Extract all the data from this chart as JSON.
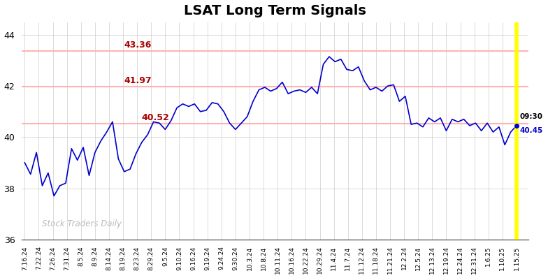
{
  "title": "LSAT Long Term Signals",
  "title_fontsize": 14,
  "line_color": "#0000cc",
  "background_color": "#ffffff",
  "grid_color": "#cccccc",
  "ylim": [
    36,
    44.5
  ],
  "yticks": [
    36,
    38,
    40,
    42,
    44
  ],
  "hlines": [
    {
      "y": 43.36,
      "color": "#ffb3b3",
      "lw": 1.5
    },
    {
      "y": 41.97,
      "color": "#ffb3b3",
      "lw": 1.5
    },
    {
      "y": 40.52,
      "color": "#ffb3b3",
      "lw": 1.5
    }
  ],
  "annotations": [
    {
      "text": "43.36",
      "xi": 17,
      "y": 43.36,
      "color": "#aa0000",
      "fontsize": 9,
      "bold": true,
      "yoff": 0.15
    },
    {
      "text": "41.97",
      "xi": 17,
      "y": 41.97,
      "color": "#aa0000",
      "fontsize": 9,
      "bold": true,
      "yoff": 0.15
    },
    {
      "text": "40.52",
      "xi": 20,
      "y": 40.52,
      "color": "#aa0000",
      "fontsize": 9,
      "bold": true,
      "yoff": 0.15
    }
  ],
  "current_label_time": "09:30",
  "current_label_price": "40.45",
  "current_price": 40.45,
  "watermark": "Stock Traders Daily",
  "xtick_labels": [
    "7.16.24",
    "7.22.24",
    "7.26.24",
    "7.31.24",
    "8.5.24",
    "8.9.24",
    "8.14.24",
    "8.19.24",
    "8.23.24",
    "8.29.24",
    "9.5.24",
    "9.10.24",
    "9.16.24",
    "9.19.24",
    "9.24.24",
    "9.30.24",
    "10.3.24",
    "10.8.24",
    "10.11.24",
    "10.16.24",
    "10.22.24",
    "10.29.24",
    "11.4.24",
    "11.7.24",
    "11.12.24",
    "11.18.24",
    "11.21.24",
    "12.2.24",
    "12.5.24",
    "12.13.24",
    "12.19.24",
    "12.24.24",
    "12.31.24",
    "1.6.25",
    "1.10.25",
    "1.15.25"
  ],
  "prices": [
    39.0,
    38.55,
    39.4,
    38.1,
    38.6,
    37.7,
    38.1,
    38.2,
    39.55,
    39.1,
    39.6,
    38.5,
    39.4,
    39.85,
    40.2,
    40.6,
    39.15,
    38.65,
    38.75,
    39.35,
    39.8,
    40.1,
    40.6,
    40.55,
    40.3,
    40.65,
    41.15,
    41.3,
    41.2,
    41.3,
    41.0,
    41.05,
    41.35,
    41.3,
    41.0,
    40.55,
    40.3,
    40.55,
    40.8,
    41.4,
    41.85,
    41.95,
    41.8,
    41.9,
    42.15,
    41.7,
    41.8,
    41.85,
    41.75,
    41.95,
    41.7,
    42.85,
    43.15,
    42.95,
    43.05,
    42.65,
    42.6,
    42.75,
    42.2,
    41.85,
    41.95,
    41.8,
    42.0,
    42.05,
    41.4,
    41.6,
    40.5,
    40.55,
    40.4,
    40.75,
    40.6,
    40.75,
    40.25,
    40.7,
    40.6,
    40.7,
    40.45,
    40.55,
    40.25,
    40.55,
    40.2,
    40.4,
    39.7,
    40.2,
    40.45
  ]
}
